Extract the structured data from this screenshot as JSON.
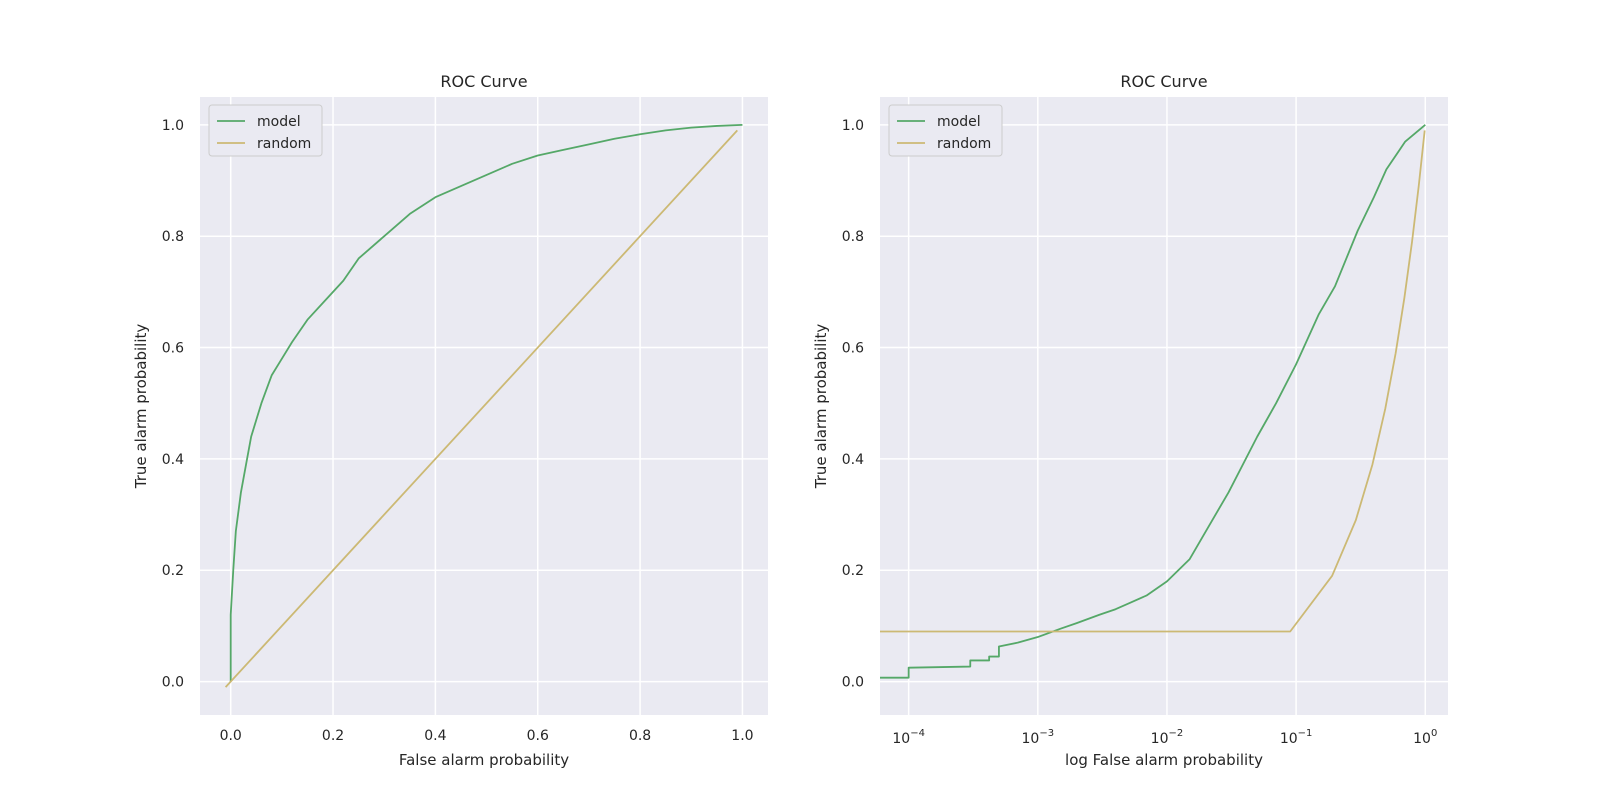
{
  "chart_data": [
    {
      "type": "line",
      "title": "ROC Curve",
      "xlabel": "False alarm probability",
      "ylabel": "True alarm probability",
      "xscale": "linear",
      "xlim": [
        -0.06,
        1.05
      ],
      "ylim": [
        -0.06,
        1.05
      ],
      "xticks": [
        0.0,
        0.2,
        0.4,
        0.6,
        0.8,
        1.0
      ],
      "xtick_labels": [
        "0.0",
        "0.2",
        "0.4",
        "0.6",
        "0.8",
        "1.0"
      ],
      "yticks": [
        0.0,
        0.2,
        0.4,
        0.6,
        0.8,
        1.0
      ],
      "ytick_labels": [
        "0.0",
        "0.2",
        "0.4",
        "0.6",
        "0.8",
        "1.0"
      ],
      "grid": true,
      "legend": "top-left",
      "background": "#eaeaf2",
      "series": [
        {
          "name": "model",
          "color": "#55a868",
          "x": [
            0.0,
            0.0,
            0.005,
            0.01,
            0.02,
            0.03,
            0.04,
            0.05,
            0.06,
            0.08,
            0.1,
            0.12,
            0.15,
            0.18,
            0.2,
            0.22,
            0.25,
            0.3,
            0.35,
            0.4,
            0.45,
            0.5,
            0.55,
            0.6,
            0.65,
            0.7,
            0.75,
            0.8,
            0.85,
            0.9,
            0.95,
            1.0
          ],
          "y": [
            0.0,
            0.12,
            0.2,
            0.27,
            0.34,
            0.39,
            0.44,
            0.47,
            0.5,
            0.55,
            0.58,
            0.61,
            0.65,
            0.68,
            0.7,
            0.72,
            0.76,
            0.8,
            0.84,
            0.87,
            0.89,
            0.91,
            0.93,
            0.945,
            0.955,
            0.965,
            0.975,
            0.983,
            0.99,
            0.995,
            0.998,
            1.0
          ]
        },
        {
          "name": "random",
          "color": "#ccb974",
          "x": [
            -0.01,
            0.99
          ],
          "y": [
            -0.01,
            0.99
          ]
        }
      ]
    },
    {
      "type": "line",
      "title": "ROC Curve",
      "xlabel": "log False alarm probability",
      "ylabel": "True alarm probability",
      "xscale": "log",
      "xlim": [
        6e-05,
        1.5
      ],
      "ylim": [
        -0.06,
        1.05
      ],
      "xticks": [
        0.0001,
        0.001,
        0.01,
        0.1,
        1
      ],
      "xtick_labels": [
        {
          "base": "10",
          "exp": "−4"
        },
        {
          "base": "10",
          "exp": "−3"
        },
        {
          "base": "10",
          "exp": "−2"
        },
        {
          "base": "10",
          "exp": "−1"
        },
        {
          "base": "10",
          "exp": "0"
        }
      ],
      "yticks": [
        0.0,
        0.2,
        0.4,
        0.6,
        0.8,
        1.0
      ],
      "ytick_labels": [
        "0.0",
        "0.2",
        "0.4",
        "0.6",
        "0.8",
        "1.0"
      ],
      "grid": true,
      "legend": "top-left",
      "background": "#eaeaf2",
      "series": [
        {
          "name": "model",
          "color": "#55a868",
          "x": [
            6e-05,
            0.0001,
            0.0001,
            0.0003,
            0.0003,
            0.00042,
            0.00042,
            0.0005,
            0.0005,
            0.0007,
            0.001,
            0.0015,
            0.002,
            0.003,
            0.004,
            0.005,
            0.007,
            0.01,
            0.015,
            0.02,
            0.03,
            0.05,
            0.07,
            0.1,
            0.15,
            0.2,
            0.3,
            0.4,
            0.5,
            0.7,
            1.0
          ],
          "y": [
            0.007,
            0.007,
            0.025,
            0.027,
            0.038,
            0.038,
            0.045,
            0.045,
            0.063,
            0.07,
            0.08,
            0.095,
            0.105,
            0.12,
            0.13,
            0.14,
            0.155,
            0.18,
            0.22,
            0.27,
            0.34,
            0.44,
            0.5,
            0.57,
            0.66,
            0.71,
            0.81,
            0.87,
            0.92,
            0.97,
            1.0
          ]
        },
        {
          "name": "random",
          "color": "#ccb974",
          "x": [
            6e-05,
            0.09,
            0.19,
            0.29,
            0.39,
            0.49,
            0.59,
            0.69,
            0.79,
            0.89,
            0.99
          ],
          "y": [
            0.09,
            0.09,
            0.19,
            0.29,
            0.39,
            0.49,
            0.59,
            0.69,
            0.79,
            0.89,
            0.99
          ]
        }
      ]
    }
  ]
}
